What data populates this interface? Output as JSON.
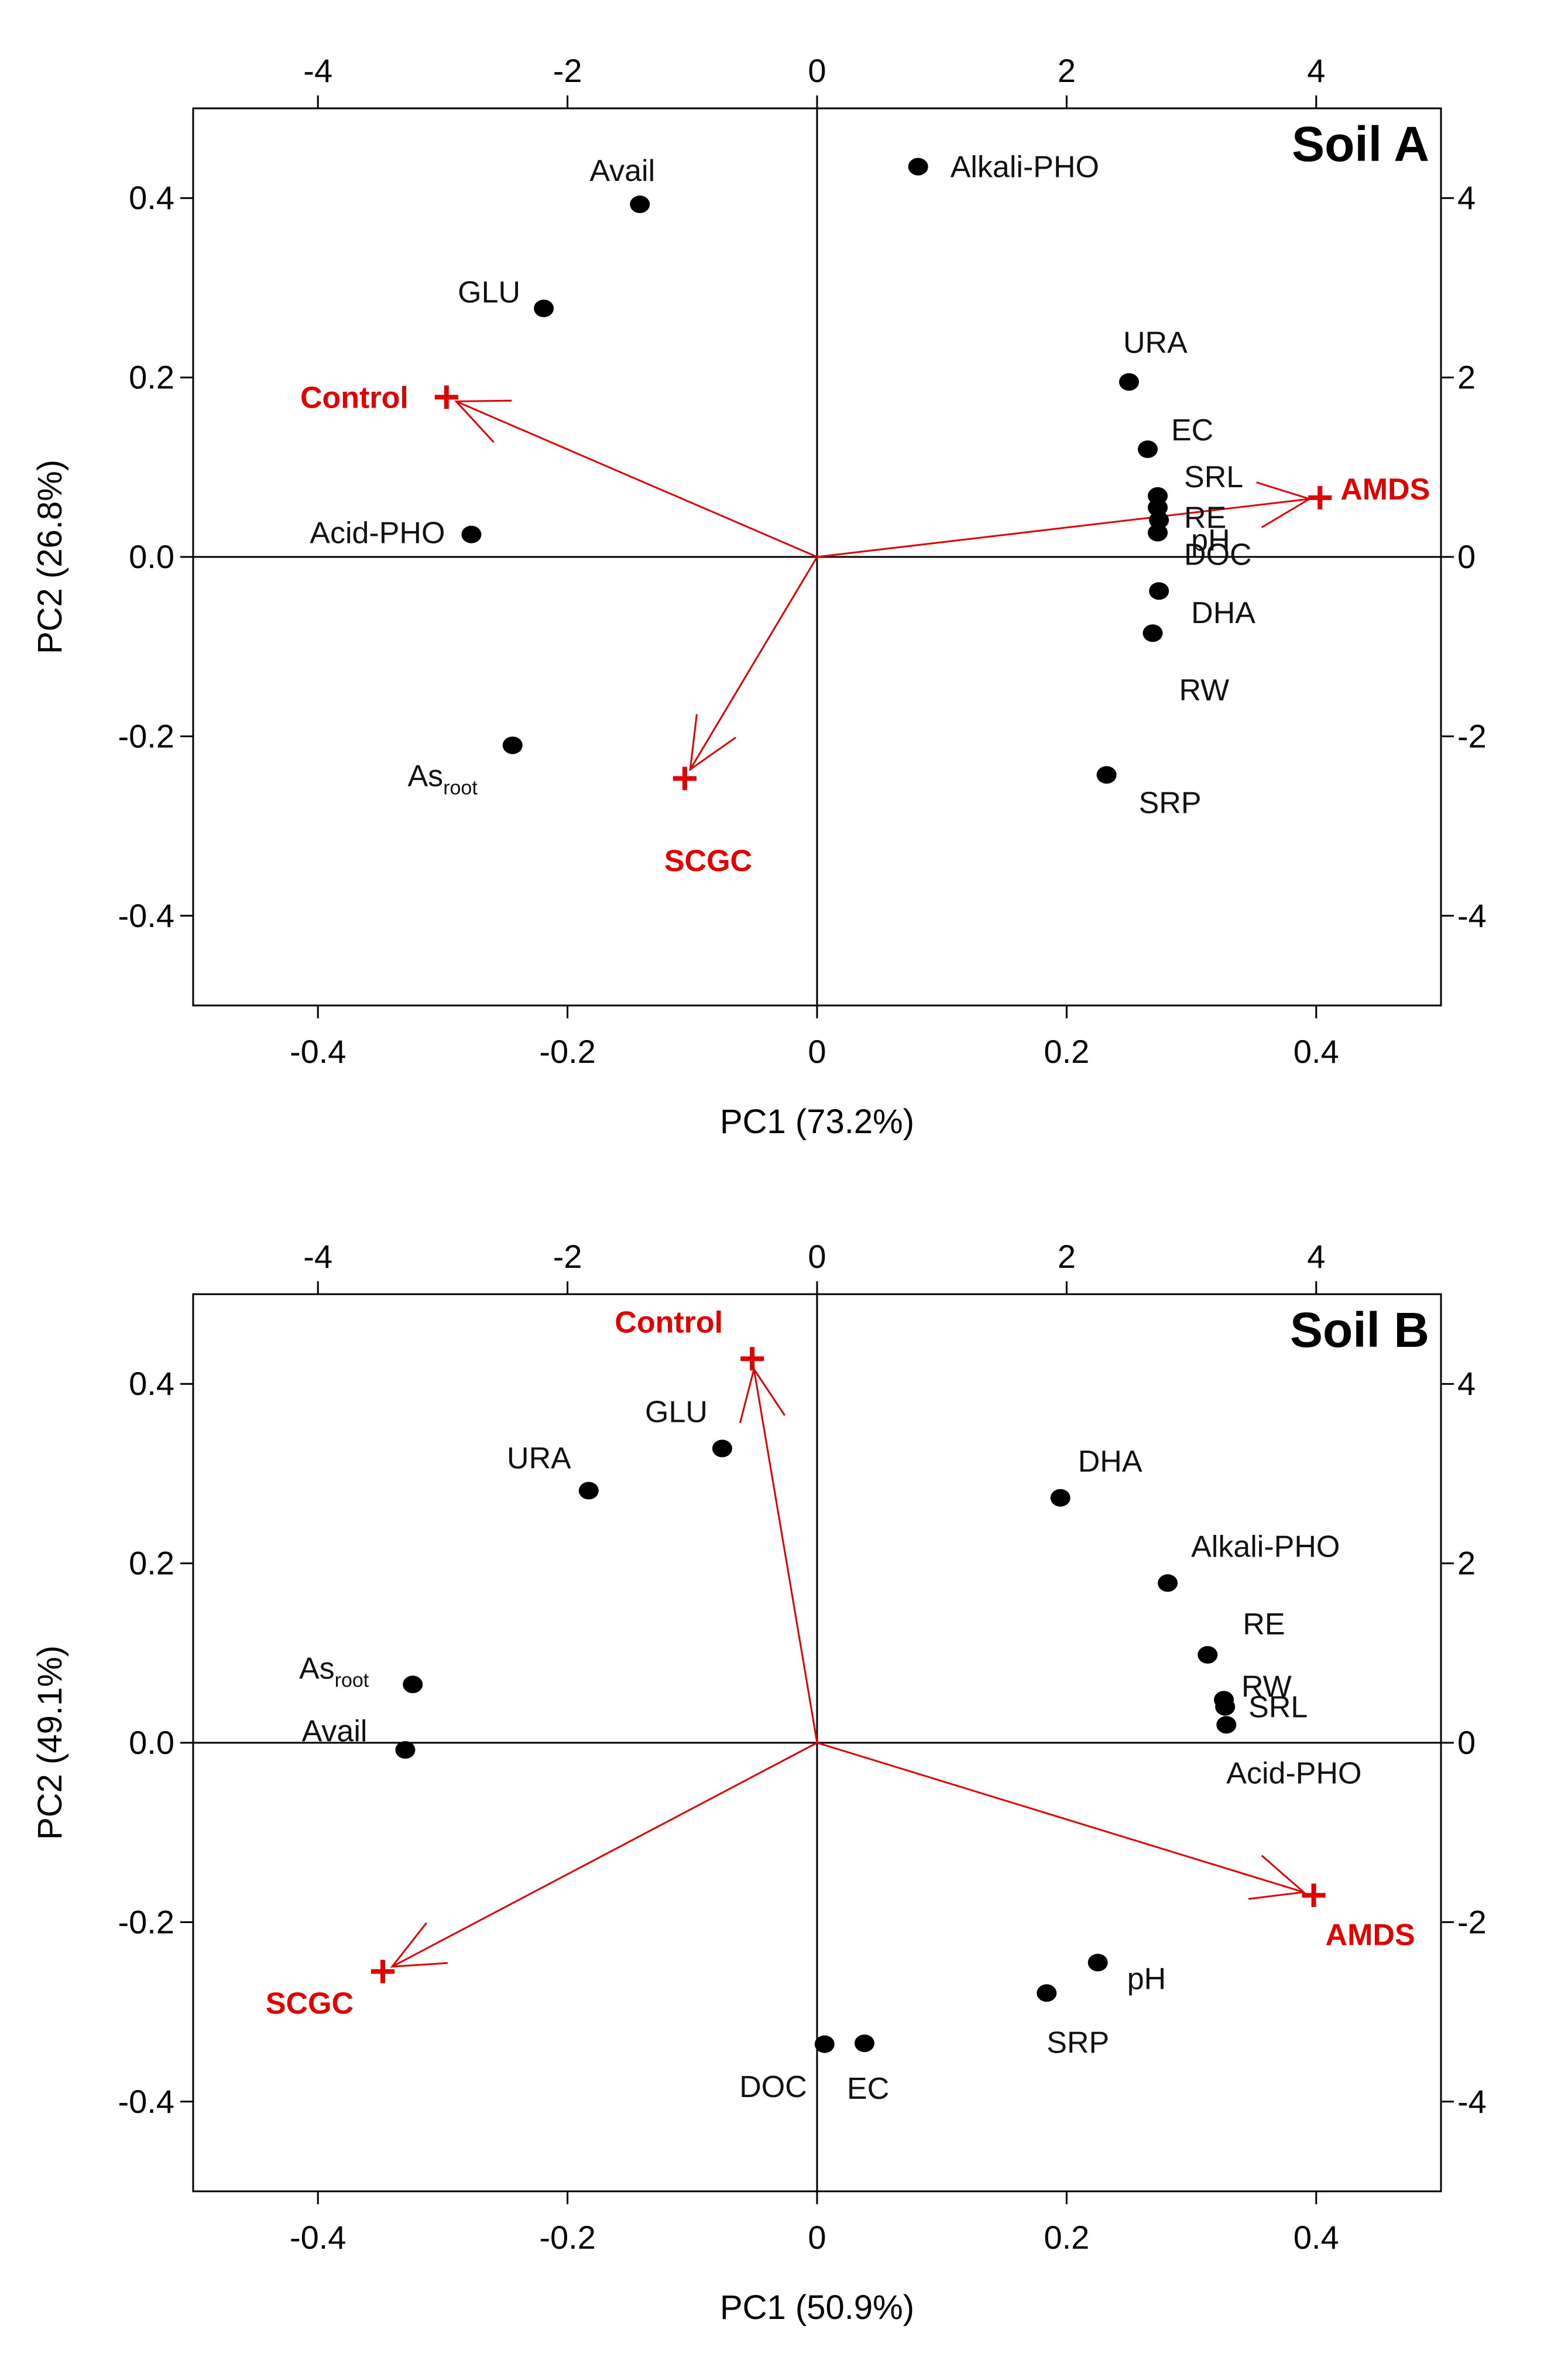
{
  "colors": {
    "site_marker": "#e00000",
    "variable_point": "#000000"
  },
  "chart_data": [
    {
      "type": "scatter",
      "title": "Soil A",
      "xlabel": "PC1 (73.2%)",
      "ylabel": "PC2 (26.8%)",
      "xlim": [
        -0.5,
        0.5
      ],
      "ylim": [
        -0.5,
        0.5
      ],
      "xticks": [
        -0.4,
        -0.2,
        0,
        0.2,
        0.4
      ],
      "xtick_labels": [
        "-0.4",
        "-0.2",
        "0",
        "0.2",
        "0.4"
      ],
      "yticks": [
        -0.4,
        -0.2,
        0,
        0.2,
        0.4
      ],
      "ytick_labels": [
        "-0.4",
        "-0.2",
        "0.0",
        "0.2",
        "0.4"
      ],
      "top_ticks": [
        -4,
        -2,
        0,
        2,
        4
      ],
      "top_tick_labels": [
        "-4",
        "-2",
        "0",
        "2",
        "4"
      ],
      "right_ticks": [
        -4,
        -2,
        0,
        2,
        4
      ],
      "right_tick_labels": [
        "-4",
        "-2",
        "0",
        "2",
        "4"
      ],
      "variables": [
        {
          "name": "Alkali-PHO",
          "x": 0.081,
          "y": 0.435
        },
        {
          "name": "Avail",
          "x": -0.142,
          "y": 0.393
        },
        {
          "name": "GLU",
          "x": -0.219,
          "y": 0.277
        },
        {
          "name": "Acid-PHO",
          "x": -0.277,
          "y": 0.025
        },
        {
          "name": "As",
          "sub": "root",
          "x": -0.244,
          "y": -0.21
        },
        {
          "name": "URA",
          "x": 0.25,
          "y": 0.195
        },
        {
          "name": "EC",
          "x": 0.265,
          "y": 0.12
        },
        {
          "name": "SRL",
          "x": 0.273,
          "y": 0.068
        },
        {
          "name": "RE",
          "x": 0.273,
          "y": 0.055
        },
        {
          "name": "pH",
          "x": 0.274,
          "y": 0.041
        },
        {
          "name": "DOC",
          "x": 0.273,
          "y": 0.027
        },
        {
          "name": "DHA",
          "x": 0.274,
          "y": -0.038
        },
        {
          "name": "RW",
          "x": 0.269,
          "y": -0.085
        },
        {
          "name": "SRP",
          "x": 0.232,
          "y": -0.243
        }
      ],
      "sites": [
        {
          "name": "Control",
          "x": -0.297,
          "y": 0.178
        },
        {
          "name": "AMDS",
          "x": 0.403,
          "y": 0.066
        },
        {
          "name": "SCGC",
          "x": -0.106,
          "y": -0.247
        }
      ]
    },
    {
      "type": "scatter",
      "title": "Soil B",
      "xlabel": "PC1 (50.9%)",
      "ylabel": "PC2 (49.1%)",
      "xlim": [
        -0.5,
        0.5
      ],
      "ylim": [
        -0.5,
        0.5
      ],
      "xticks": [
        -0.4,
        -0.2,
        0,
        0.2,
        0.4
      ],
      "xtick_labels": [
        "-0.4",
        "-0.2",
        "0",
        "0.2",
        "0.4"
      ],
      "yticks": [
        -0.4,
        -0.2,
        0,
        0.2,
        0.4
      ],
      "ytick_labels": [
        "-0.4",
        "-0.2",
        "0.0",
        "0.2",
        "0.4"
      ],
      "top_ticks": [
        -4,
        -2,
        0,
        2,
        4
      ],
      "top_tick_labels": [
        "-4",
        "-2",
        "0",
        "2",
        "4"
      ],
      "right_ticks": [
        -4,
        -2,
        0,
        2,
        4
      ],
      "right_tick_labels": [
        "-4",
        "-2",
        "0",
        "2",
        "4"
      ],
      "variables": [
        {
          "name": "DHA",
          "x": 0.195,
          "y": 0.273
        },
        {
          "name": "GLU",
          "x": -0.076,
          "y": 0.328
        },
        {
          "name": "URA",
          "x": -0.183,
          "y": 0.281
        },
        {
          "name": "Alkali-PHO",
          "x": 0.281,
          "y": 0.178
        },
        {
          "name": "RE",
          "x": 0.313,
          "y": 0.098
        },
        {
          "name": "RW",
          "x": 0.326,
          "y": 0.048
        },
        {
          "name": "SRL",
          "x": 0.327,
          "y": 0.04
        },
        {
          "name": "Acid-PHO",
          "x": 0.328,
          "y": 0.02
        },
        {
          "name": "As",
          "sub": "root",
          "x": -0.324,
          "y": 0.065
        },
        {
          "name": "Avail",
          "x": -0.33,
          "y": -0.008
        },
        {
          "name": "pH",
          "x": 0.225,
          "y": -0.245
        },
        {
          "name": "SRP",
          "x": 0.184,
          "y": -0.279
        },
        {
          "name": "DOC",
          "x": 0.006,
          "y": -0.336
        },
        {
          "name": "EC",
          "x": 0.038,
          "y": -0.335
        }
      ],
      "sites": [
        {
          "name": "Control",
          "x": -0.052,
          "y": 0.428
        },
        {
          "name": "AMDS",
          "x": 0.398,
          "y": -0.17
        },
        {
          "name": "SCGC",
          "x": -0.348,
          "y": -0.255
        }
      ]
    }
  ]
}
